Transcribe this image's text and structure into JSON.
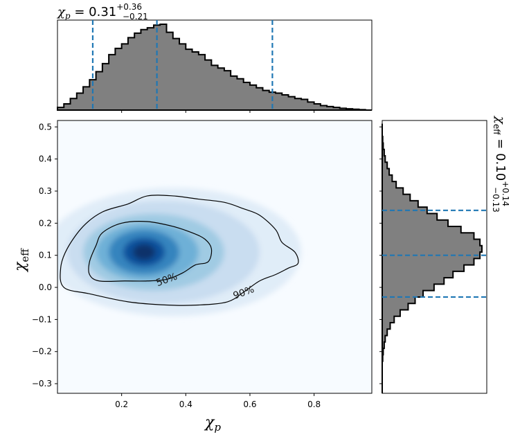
{
  "chart_data": {
    "type": "corner",
    "colors": {
      "hist_fill": "#808080",
      "hist_edge": "#000000",
      "quantile_line": "#1f77b4",
      "density_cmap": "Blues",
      "contour": "#000000"
    },
    "top_hist": {
      "title_value": "0.31",
      "title_upper": "+0.36",
      "title_lower": "−0.21",
      "quantiles": [
        0.11,
        0.31,
        0.67
      ],
      "xlim": [
        0.0,
        0.98
      ],
      "bin_edges": [
        0.0,
        0.02,
        0.04,
        0.06,
        0.08,
        0.1,
        0.12,
        0.14,
        0.16,
        0.18,
        0.2,
        0.22,
        0.24,
        0.26,
        0.28,
        0.3,
        0.32,
        0.34,
        0.36,
        0.38,
        0.4,
        0.42,
        0.44,
        0.46,
        0.48,
        0.5,
        0.52,
        0.54,
        0.56,
        0.58,
        0.6,
        0.62,
        0.64,
        0.66,
        0.68,
        0.7,
        0.72,
        0.74,
        0.76,
        0.78,
        0.8,
        0.82,
        0.84,
        0.86,
        0.88,
        0.9,
        0.92,
        0.94,
        0.96,
        0.98
      ],
      "counts": [
        0.03,
        0.07,
        0.13,
        0.19,
        0.26,
        0.34,
        0.43,
        0.52,
        0.62,
        0.69,
        0.74,
        0.81,
        0.86,
        0.9,
        0.92,
        0.95,
        0.96,
        0.87,
        0.8,
        0.74,
        0.68,
        0.65,
        0.62,
        0.56,
        0.5,
        0.47,
        0.44,
        0.38,
        0.35,
        0.31,
        0.28,
        0.25,
        0.22,
        0.2,
        0.19,
        0.17,
        0.15,
        0.13,
        0.12,
        0.09,
        0.07,
        0.05,
        0.04,
        0.03,
        0.02,
        0.015,
        0.01,
        0.005,
        0.0
      ]
    },
    "right_hist": {
      "title_value": "0.10",
      "title_upper": "+0.14",
      "title_lower": "−0.13",
      "quantiles": [
        -0.03,
        0.1,
        0.24
      ],
      "ylim": [
        -0.33,
        0.52
      ],
      "bin_edges": [
        -0.33,
        -0.31,
        -0.29,
        -0.27,
        -0.25,
        -0.23,
        -0.21,
        -0.19,
        -0.17,
        -0.15,
        -0.13,
        -0.11,
        -0.09,
        -0.07,
        -0.05,
        -0.03,
        -0.01,
        0.01,
        0.03,
        0.05,
        0.07,
        0.09,
        0.11,
        0.13,
        0.15,
        0.17,
        0.19,
        0.21,
        0.23,
        0.25,
        0.27,
        0.29,
        0.31,
        0.33,
        0.35,
        0.37,
        0.39,
        0.41,
        0.43,
        0.45,
        0.47,
        0.49,
        0.51
      ],
      "counts": [
        0.0,
        0.0,
        0.0,
        0.0,
        0.0,
        0.005,
        0.01,
        0.02,
        0.03,
        0.05,
        0.08,
        0.12,
        0.18,
        0.26,
        0.33,
        0.41,
        0.52,
        0.62,
        0.71,
        0.82,
        0.92,
        0.98,
        1.0,
        0.98,
        0.92,
        0.79,
        0.66,
        0.55,
        0.45,
        0.36,
        0.28,
        0.21,
        0.14,
        0.1,
        0.07,
        0.05,
        0.03,
        0.02,
        0.01,
        0.005,
        0.0,
        0.0
      ]
    },
    "density": {
      "xlabel": "χ",
      "xlabel_sub": "p",
      "ylabel": "χ",
      "ylabel_sub": "eff",
      "xlim": [
        0.0,
        0.98
      ],
      "ylim": [
        -0.33,
        0.52
      ],
      "xticks": [
        "0.2",
        "0.4",
        "0.6",
        "0.8"
      ],
      "xtick_values": [
        0.2,
        0.4,
        0.6,
        0.8
      ],
      "yticks": [
        "0.5",
        "0.4",
        "0.3",
        "0.2",
        "0.1",
        "0.0",
        "−0.1",
        "−0.2",
        "−0.3"
      ],
      "ytick_values": [
        0.5,
        0.4,
        0.3,
        0.2,
        0.1,
        0.0,
        -0.1,
        -0.2,
        -0.3
      ],
      "peak": {
        "x": 0.27,
        "y": 0.11
      },
      "contours": [
        {
          "label": "50%",
          "label_at": [
            0.34,
            0.025
          ],
          "points": [
            [
              0.2,
              0.2
            ],
            [
              0.28,
              0.205
            ],
            [
              0.36,
              0.19
            ],
            [
              0.42,
              0.17
            ],
            [
              0.46,
              0.15
            ],
            [
              0.48,
              0.12
            ],
            [
              0.47,
              0.08
            ],
            [
              0.43,
              0.07
            ],
            [
              0.39,
              0.045
            ],
            [
              0.34,
              0.025
            ],
            [
              0.28,
              0.02
            ],
            [
              0.21,
              0.02
            ],
            [
              0.13,
              0.02
            ],
            [
              0.1,
              0.04
            ],
            [
              0.1,
              0.08
            ],
            [
              0.12,
              0.13
            ],
            [
              0.14,
              0.17
            ]
          ]
        },
        {
          "label": "90%",
          "label_at": [
            0.58,
            -0.015
          ],
          "points": [
            [
              0.22,
              0.26
            ],
            [
              0.28,
              0.285
            ],
            [
              0.36,
              0.285
            ],
            [
              0.44,
              0.275
            ],
            [
              0.52,
              0.265
            ],
            [
              0.58,
              0.245
            ],
            [
              0.63,
              0.225
            ],
            [
              0.68,
              0.18
            ],
            [
              0.7,
              0.14
            ],
            [
              0.74,
              0.11
            ],
            [
              0.75,
              0.075
            ],
            [
              0.72,
              0.06
            ],
            [
              0.68,
              0.04
            ],
            [
              0.63,
              0.02
            ],
            [
              0.58,
              -0.015
            ],
            [
              0.53,
              -0.045
            ],
            [
              0.44,
              -0.055
            ],
            [
              0.34,
              -0.055
            ],
            [
              0.22,
              -0.045
            ],
            [
              0.1,
              -0.02
            ],
            [
              0.02,
              0.0
            ],
            [
              0.01,
              0.06
            ],
            [
              0.03,
              0.12
            ],
            [
              0.08,
              0.19
            ],
            [
              0.14,
              0.235
            ]
          ]
        }
      ]
    }
  }
}
